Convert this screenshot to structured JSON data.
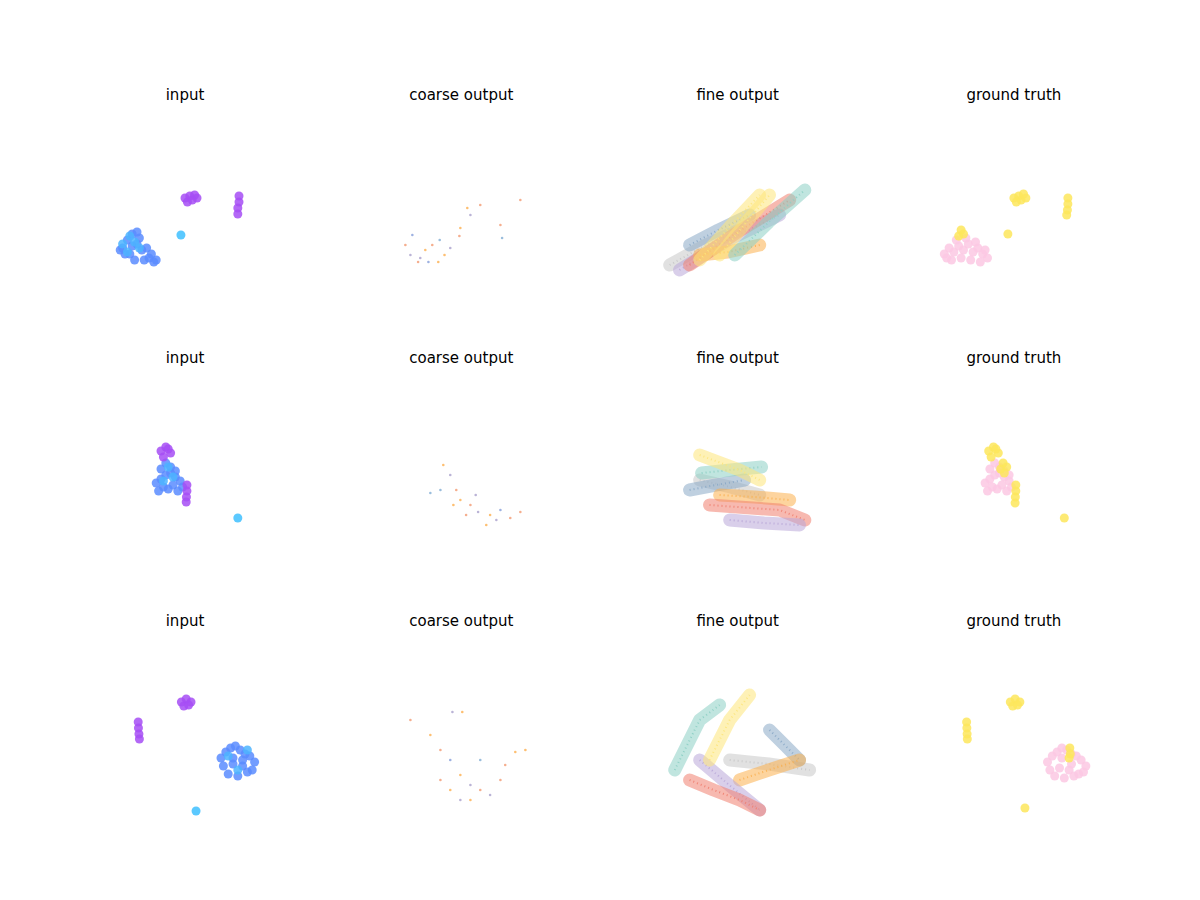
{
  "chart_data": [
    {
      "type": "scatter",
      "title": "input",
      "xlim": [
        0,
        100
      ],
      "ylim": [
        0,
        100
      ],
      "tick_labels": false,
      "marker": "circle",
      "series": [
        {
          "color": "#5a8cff",
          "x": [
            24,
            26,
            28,
            27,
            30,
            32,
            33,
            35,
            37,
            29,
            31,
            25,
            34,
            38,
            23,
            28,
            36,
            30
          ],
          "values": [
            36,
            40,
            43,
            33,
            38,
            35,
            30,
            31,
            29,
            30,
            41,
            33,
            36,
            30,
            35,
            37,
            33,
            44
          ]
        },
        {
          "color": "#4cb4ff",
          "x": [
            24,
            27,
            29,
            26,
            31
          ],
          "values": [
            38,
            42,
            39,
            34,
            36
          ]
        },
        {
          "color": "#a64df5",
          "x": [
            50,
            52,
            53,
            55,
            51,
            54,
            72.5,
            72.5,
            72,
            72
          ],
          "values": [
            61,
            62,
            60,
            61,
            59,
            62.5,
            62,
            59,
            56,
            53
          ]
        },
        {
          "color": "#3ec0ff",
          "x": [
            48.3
          ],
          "values": [
            42.5
          ]
        }
      ]
    },
    {
      "type": "scatter",
      "title": "coarse output",
      "xlim": [
        0,
        100
      ],
      "ylim": [
        0,
        100
      ],
      "tick_labels": false,
      "marker": "dot",
      "series": [
        {
          "colors": [
            "#f4a582",
            "#92a8de",
            "#b2abd2",
            "#fdb863",
            "#f4a582",
            "#8fb6d8",
            "#fdb863",
            "#b2abd2",
            "#f4a582",
            "#fdb863",
            "#92a8de",
            "#f4a582",
            "#fdb863",
            "#b2abd2",
            "#f4a582",
            "#fdb863",
            "#f4a582",
            "#8fb6d8",
            "#f4a582",
            "#b2abd2"
          ],
          "x": [
            26.7,
            29.6,
            32.9,
            35,
            37.9,
            41,
            43,
            45.4,
            49.2,
            40.4,
            36.3,
            32,
            49.6,
            53.8,
            57.9,
            52.5,
            66.3,
            67,
            74.6,
            28.8
          ],
          "values": [
            37.5,
            42.5,
            31,
            35,
            37.5,
            40,
            32.5,
            36,
            42,
            29,
            29,
            29,
            46,
            52.5,
            57.5,
            56,
            47.5,
            41,
            60,
            32.5
          ]
        }
      ]
    },
    {
      "type": "line",
      "title": "fine output",
      "xlim": [
        0,
        100
      ],
      "ylim": [
        0,
        100
      ],
      "tick_labels": false,
      "series": [
        {
          "color": "#c8c8c8",
          "x": [
            21.7,
            36,
            50.8
          ],
          "values": [
            27.5,
            37,
            45
          ]
        },
        {
          "color": "#b9a7d8",
          "x": [
            25.8,
            46,
            67.5
          ],
          "values": [
            25,
            40,
            52.5
          ]
        },
        {
          "color": "#8aa9c6",
          "x": [
            30,
            42,
            55
          ],
          "values": [
            37.5,
            45,
            52.5
          ]
        },
        {
          "color": "#f08070",
          "x": [
            30,
            50,
            71.7
          ],
          "values": [
            27.5,
            44,
            60
          ]
        },
        {
          "color": "#fbb04f",
          "x": [
            34.2,
            46,
            59.2
          ],
          "values": [
            32.5,
            34,
            37.5
          ]
        },
        {
          "color": "#fde67a",
          "x": [
            34.2,
            47,
            59.2
          ],
          "values": [
            30,
            47,
            62.5
          ]
        },
        {
          "color": "#fde67a",
          "x": [
            42.5,
            53,
            63.3
          ],
          "values": [
            32.5,
            48,
            62.5
          ]
        },
        {
          "color": "#8ccfc4",
          "x": [
            48.8,
            63,
            78
          ],
          "values": [
            32.5,
            49,
            65
          ]
        }
      ]
    },
    {
      "type": "scatter",
      "title": "ground truth",
      "xlim": [
        0,
        100
      ],
      "ylim": [
        0,
        100
      ],
      "tick_labels": false,
      "marker": "circle",
      "series": [
        {
          "color": "#fbc8e3",
          "x": [
            21,
            23,
            25,
            27,
            29,
            31,
            33,
            35,
            37,
            39,
            24,
            28,
            32,
            36,
            26,
            30,
            34,
            22,
            38
          ],
          "values": [
            33,
            36,
            34,
            37,
            35,
            38,
            34,
            36,
            33,
            31,
            30,
            31,
            30,
            29,
            40,
            41,
            39,
            31,
            35
          ]
        },
        {
          "color": "#fde65c",
          "x": [
            27,
            28,
            29,
            50,
            52,
            53,
            55,
            51,
            54,
            72.5,
            72.5,
            72.3,
            72,
            47.5
          ],
          "values": [
            42,
            45,
            43,
            61,
            62,
            60,
            61,
            59,
            63,
            61,
            58,
            55,
            52.5,
            43
          ]
        }
      ]
    },
    {
      "type": "scatter",
      "title": "input",
      "xlim": [
        0,
        100
      ],
      "ylim": [
        0,
        100
      ],
      "tick_labels": false,
      "marker": "circle",
      "series": [
        {
          "color": "#5a8cff",
          "x": [
            38,
            40,
            42,
            44,
            46,
            48,
            39,
            41,
            43,
            45,
            47,
            49,
            40,
            44,
            42,
            46
          ],
          "values": [
            50,
            52,
            54,
            55,
            53,
            51,
            46,
            48,
            47,
            49,
            46,
            48,
            57,
            58,
            60,
            56
          ]
        },
        {
          "color": "#4cb4ff",
          "x": [
            41,
            45,
            43
          ],
          "values": [
            51,
            53,
            58
          ]
        },
        {
          "color": "#a64df5",
          "x": [
            40,
            42,
            44,
            41,
            43,
            50.8,
            50.8,
            50.6,
            50.5
          ],
          "values": [
            66,
            68,
            65,
            63,
            67,
            49,
            46,
            43,
            40.5
          ]
        },
        {
          "color": "#3ec0ff",
          "x": [
            72
          ],
          "values": [
            32.5
          ]
        }
      ]
    },
    {
      "type": "scatter",
      "title": "coarse output",
      "xlim": [
        0,
        100
      ],
      "ylim": [
        0,
        100
      ],
      "tick_labels": false,
      "marker": "dot",
      "series": [
        {
          "colors": [
            "#fdb863",
            "#b2abd2",
            "#f4a582",
            "#8fb6d8",
            "#fdb863",
            "#f4a582",
            "#b2abd2",
            "#fdb863",
            "#92a8de",
            "#f4a582",
            "#fdb863",
            "#b2abd2",
            "#f4a582",
            "#8fb6d8",
            "#fdb863",
            "#f4a582",
            "#b2abd2"
          ],
          "x": [
            42.5,
            45.4,
            47.9,
            41.3,
            49.6,
            53.8,
            57,
            62,
            66.3,
            70.4,
            60.4,
            64.6,
            52,
            37.1,
            46.7,
            74.6,
            56
          ],
          "values": [
            59,
            54,
            46.5,
            46.5,
            41.5,
            39,
            35.5,
            34,
            36.5,
            32.5,
            29,
            31.5,
            34,
            45,
            39,
            35.5,
            44
          ]
        }
      ]
    },
    {
      "type": "line",
      "title": "fine output",
      "xlim": [
        0,
        100
      ],
      "ylim": [
        0,
        100
      ],
      "tick_labels": false,
      "series": [
        {
          "color": "#c8c8c8",
          "x": [
            34.2,
            47,
            59.2
          ],
          "values": [
            51.5,
            48,
            44
          ]
        },
        {
          "color": "#8aa9c6",
          "x": [
            30,
            41,
            52.9
          ],
          "values": [
            46.5,
            49,
            51.5
          ]
        },
        {
          "color": "#8ccfc4",
          "x": [
            35,
            47,
            60
          ],
          "values": [
            55,
            56.5,
            58
          ]
        },
        {
          "color": "#fde67a",
          "x": [
            34.2,
            50.8,
            59.2
          ],
          "values": [
            64,
            56.5,
            51.5
          ]
        },
        {
          "color": "#fbb04f",
          "x": [
            42.5,
            57,
            71.7
          ],
          "values": [
            44,
            43,
            41.5
          ]
        },
        {
          "color": "#f08070",
          "x": [
            38.3,
            67.5,
            78
          ],
          "values": [
            39,
            36.5,
            31.5
          ]
        },
        {
          "color": "#b9a7d8",
          "x": [
            46.7,
            61,
            75.8
          ],
          "values": [
            31.5,
            30,
            29
          ]
        }
      ]
    },
    {
      "type": "scatter",
      "title": "ground truth",
      "xlim": [
        0,
        100
      ],
      "ylim": [
        0,
        100
      ],
      "tick_labels": false,
      "marker": "circle",
      "series": [
        {
          "color": "#fbc8e3",
          "x": [
            38,
            40,
            42,
            44,
            46,
            48,
            39,
            41,
            43,
            45,
            47,
            49,
            40,
            44,
            42,
            46,
            48
          ],
          "values": [
            50,
            52,
            54,
            55,
            53,
            51,
            46,
            48,
            47,
            49,
            46,
            48,
            57,
            58,
            60,
            56,
            54
          ]
        },
        {
          "color": "#fde65c",
          "x": [
            39.5,
            41.5,
            43.5,
            40.5,
            42.5,
            44.5,
            45.5,
            47,
            46,
            50.8,
            50.8,
            50.6,
            50.5,
            71
          ],
          "values": [
            66,
            68,
            65,
            63,
            67,
            57,
            60,
            58,
            55,
            49,
            46,
            43,
            40,
            32.5
          ]
        }
      ]
    },
    {
      "type": "scatter",
      "title": "input",
      "xlim": [
        0,
        100
      ],
      "ylim": [
        0,
        100
      ],
      "tick_labels": false,
      "marker": "circle",
      "series": [
        {
          "color": "#5a8cff",
          "x": [
            65,
            67,
            69,
            71,
            73,
            75,
            77,
            79,
            66,
            70,
            74,
            78,
            68,
            72,
            76,
            70,
            74
          ],
          "values": [
            44,
            47,
            49,
            50,
            48,
            46,
            45,
            42,
            40,
            41,
            40,
            38,
            36,
            35,
            37,
            44,
            43
          ]
        },
        {
          "color": "#4cb4ff",
          "x": [
            68,
            72,
            76
          ],
          "values": [
            45,
            38,
            48
          ]
        },
        {
          "color": "#a64df5",
          "x": [
            48.5,
            50.5,
            52.5,
            49.5,
            51.5,
            30.5,
            30.6,
            30.8,
            31
          ],
          "values": [
            72,
            73.5,
            72,
            70,
            70.5,
            62,
            59,
            56,
            53.5
          ]
        },
        {
          "color": "#3ec0ff",
          "x": [
            54.6
          ],
          "values": [
            17.5
          ]
        }
      ]
    },
    {
      "type": "scatter",
      "title": "coarse output",
      "xlim": [
        0,
        100
      ],
      "ylim": [
        0,
        100
      ],
      "tick_labels": false,
      "marker": "dot",
      "series": [
        {
          "colors": [
            "#f4a582",
            "#b2abd2",
            "#fdb863",
            "#fdb863",
            "#f4a582",
            "#92a8de",
            "#fdb863",
            "#b2abd2",
            "#f4a582",
            "#fdb863",
            "#b2abd2",
            "#f4a582",
            "#fdb863",
            "#f4a582",
            "#8fb6d8",
            "#fdb863",
            "#f4a582",
            "#b2abd2",
            "#fdb863"
          ],
          "x": [
            28.8,
            46.3,
            50.4,
            37.1,
            41.3,
            45.4,
            49.6,
            53.8,
            57.9,
            53.8,
            62,
            66.3,
            72.5,
            68.3,
            57.9,
            45.4,
            41.3,
            49.6,
            76.7
          ],
          "values": [
            63,
            67,
            67,
            55.5,
            48,
            43,
            35.5,
            30.5,
            28,
            23,
            25.5,
            33,
            47,
            40.5,
            43,
            28,
            33,
            23,
            48
          ]
        }
      ]
    },
    {
      "type": "line",
      "title": "fine output",
      "xlim": [
        0,
        100
      ],
      "ylim": [
        0,
        100
      ],
      "tick_labels": false,
      "series": [
        {
          "color": "#c8c8c8",
          "x": [
            46.7,
            63,
            80
          ],
          "values": [
            43,
            41,
            38
          ]
        },
        {
          "color": "#8aa9c6",
          "x": [
            63.3,
            70,
            75.8
          ],
          "values": [
            58,
            50,
            43
          ]
        },
        {
          "color": "#fbb04f",
          "x": [
            50.8,
            63,
            75.8
          ],
          "values": [
            33,
            38,
            43
          ]
        },
        {
          "color": "#b9a7d8",
          "x": [
            34.2,
            47,
            59.2
          ],
          "values": [
            43,
            30,
            18
          ]
        },
        {
          "color": "#f08070",
          "x": [
            30,
            40,
            50.8,
            59.2
          ],
          "values": [
            33,
            28,
            23,
            18
          ]
        },
        {
          "color": "#8ccfc4",
          "x": [
            23.8,
            34.2,
            42.5
          ],
          "values": [
            38,
            63,
            70.5
          ]
        },
        {
          "color": "#fde67a",
          "x": [
            38.3,
            46.7,
            55
          ],
          "values": [
            43,
            63,
            75.5
          ]
        }
      ]
    },
    {
      "type": "scatter",
      "title": "ground truth",
      "xlim": [
        0,
        100
      ],
      "ylim": [
        0,
        100
      ],
      "tick_labels": false,
      "marker": "circle",
      "series": [
        {
          "color": "#fbc8e3",
          "x": [
            64,
            66,
            68,
            70,
            72,
            74,
            76,
            78,
            80,
            65,
            69,
            73,
            77,
            67,
            71,
            75,
            79,
            70,
            74
          ],
          "values": [
            42,
            45,
            47,
            49,
            48,
            46,
            45,
            43,
            40,
            38,
            39,
            38,
            36,
            35,
            34,
            35,
            37,
            44,
            41
          ]
        },
        {
          "color": "#fde65c",
          "x": [
            48.5,
            50.5,
            52.5,
            49.5,
            51.5,
            30.3,
            30.4,
            30.5,
            30.6,
            73.3,
            73.5,
            73,
            54.6
          ],
          "values": [
            72,
            73.5,
            72,
            70,
            70.5,
            62,
            59,
            56,
            53.5,
            49,
            46,
            44,
            19
          ]
        }
      ]
    }
  ]
}
